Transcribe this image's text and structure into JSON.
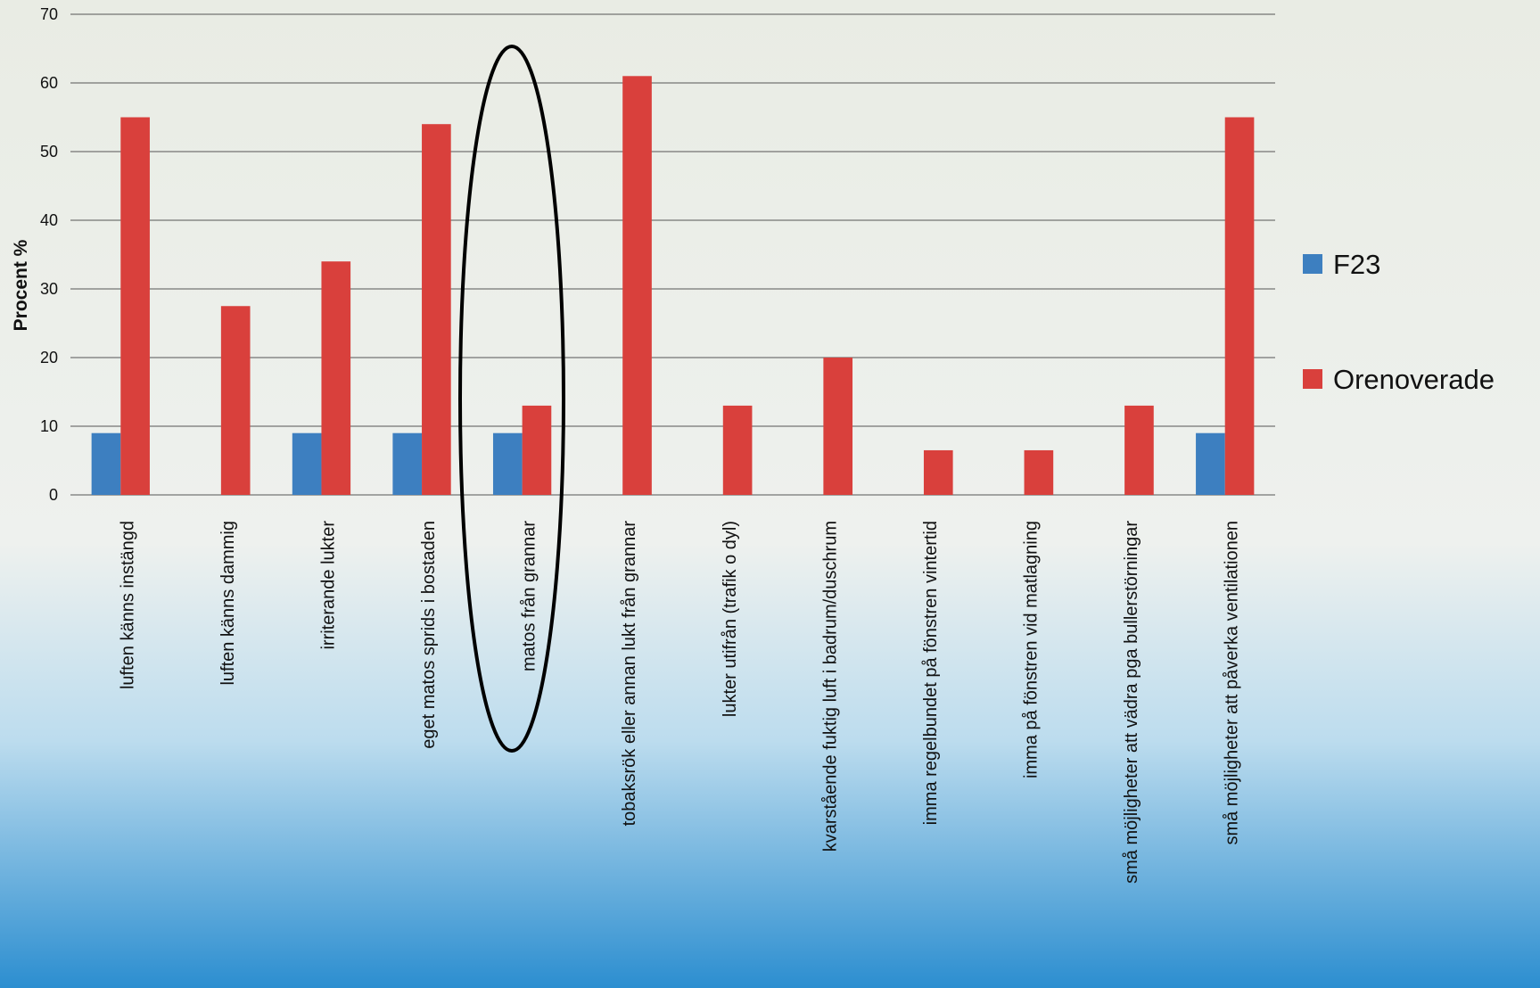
{
  "chart_data": {
    "type": "bar",
    "y_label": "Procent %",
    "categories": [
      "luften känns instängd",
      "luften känns dammig",
      "irriterande lukter",
      "eget matos sprids i bostaden",
      "matos från grannar",
      "tobaksrök eller annan lukt från grannar",
      "lukter utifrån (trafik o dyl)",
      "kvarstående fuktig luft i badrum/duschrum",
      "imma regelbundet på fönstren vintertid",
      "imma på fönstren vid matlagning",
      "små möjligheter att vädra pga bullerstörningar",
      "små möjligheter att påverka ventilationen"
    ],
    "series": [
      {
        "name": "F23",
        "color": "#3d7fc0",
        "values": [
          9,
          0,
          9,
          9,
          9,
          0,
          0,
          0,
          0,
          0,
          0,
          9
        ]
      },
      {
        "name": "Orenoverade",
        "color": "#d9403c",
        "values": [
          55,
          27.5,
          34,
          54,
          13,
          61,
          13,
          20,
          6.5,
          6.5,
          13,
          55
        ]
      }
    ],
    "ylim": [
      0,
      70
    ],
    "yticks": [
      0,
      10,
      20,
      30,
      40,
      50,
      60,
      70
    ],
    "grid": true,
    "legend": "right"
  }
}
